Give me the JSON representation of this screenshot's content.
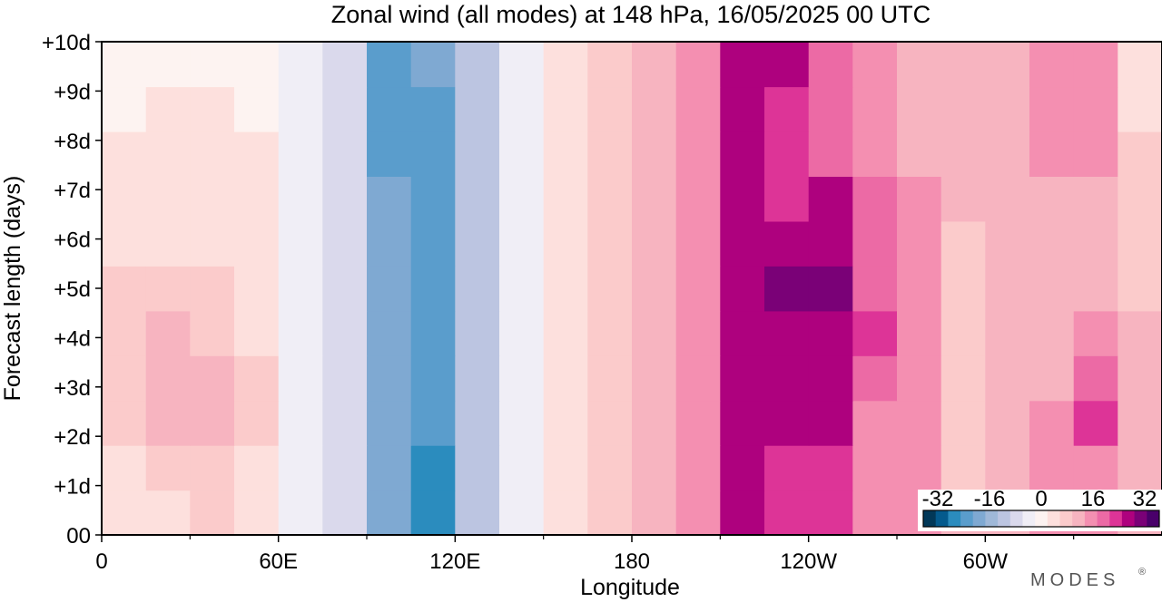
{
  "chart_data": {
    "type": "heatmap",
    "title": "Zonal wind (all modes) at 148 hPa,  16/05/2025  00 UTC",
    "xlabel": "Longitude",
    "ylabel": "Forecast length (days)",
    "x_ticks": [
      {
        "lon": 0,
        "label": "0"
      },
      {
        "lon": 60,
        "label": "60E"
      },
      {
        "lon": 120,
        "label": "120E"
      },
      {
        "lon": 180,
        "label": "180"
      },
      {
        "lon": 240,
        "label": "120W"
      },
      {
        "lon": 300,
        "label": "60W"
      }
    ],
    "x_minor_ticks": [
      30,
      90,
      150,
      210,
      270,
      330
    ],
    "xlim": [
      0,
      360
    ],
    "y_ticks": [
      {
        "day": 0,
        "label": "00"
      },
      {
        "day": 1,
        "label": "+1d"
      },
      {
        "day": 2,
        "label": "+2d"
      },
      {
        "day": 3,
        "label": "+3d"
      },
      {
        "day": 4,
        "label": "+4d"
      },
      {
        "day": 5,
        "label": "+5d"
      },
      {
        "day": 6,
        "label": "+6d"
      },
      {
        "day": 7,
        "label": "+7d"
      },
      {
        "day": 8,
        "label": "+8d"
      },
      {
        "day": 9,
        "label": "+9d"
      },
      {
        "day": 10,
        "label": "+10d"
      }
    ],
    "ylim": [
      0,
      10
    ],
    "colorbar": {
      "range": [
        -32,
        32
      ],
      "tick_labels": [
        "-32",
        "-16",
        "0",
        "16",
        "32"
      ],
      "colors": [
        "#023858",
        "#045a8d",
        "#2b8cbe",
        "#5a9dcc",
        "#7fa9d2",
        "#9fb8d8",
        "#bcc5e1",
        "#dad9ec",
        "#f0eef6",
        "#fdf3f1",
        "#fde0dd",
        "#fbcbcb",
        "#f7b4c0",
        "#f48fb1",
        "#ec6aa5",
        "#dd3497",
        "#ae017e",
        "#7a0177",
        "#49006a"
      ]
    },
    "series": [
      {
        "values": [
          [
            3,
            5,
            6,
            4,
            -2,
            -8,
            -18,
            -22,
            -10,
            -4,
            3,
            7,
            10,
            12,
            23,
            20,
            21,
            15,
            13,
            9,
            9,
            14,
            12,
            11
          ],
          [
            5,
            7,
            8,
            5,
            -2,
            -8,
            -18,
            -22,
            -10,
            -4,
            3,
            7,
            10,
            12,
            22,
            20,
            20,
            14,
            12,
            8,
            10,
            14,
            15,
            10
          ],
          [
            7,
            9,
            9,
            6,
            -2,
            -8,
            -18,
            -21,
            -10,
            -4,
            3,
            7,
            10,
            13,
            24,
            22,
            22,
            15,
            12,
            8,
            11,
            13,
            20,
            11
          ],
          [
            8,
            10,
            9,
            6,
            -2,
            -8,
            -18,
            -20,
            -10,
            -4,
            3,
            7,
            10,
            13,
            24,
            25,
            25,
            18,
            12,
            8,
            10,
            11,
            16,
            10
          ],
          [
            8,
            9,
            8,
            5,
            -2,
            -8,
            -18,
            -19,
            -10,
            -4,
            3,
            7,
            10,
            12,
            22,
            25,
            25,
            19,
            12,
            8,
            9,
            10,
            13,
            9
          ],
          [
            6,
            7,
            6,
            4,
            -2,
            -8,
            -18,
            -20,
            -10,
            -4,
            3,
            7,
            10,
            12,
            22,
            26,
            26,
            18,
            12,
            8,
            9,
            9,
            11,
            8
          ],
          [
            4,
            5,
            5,
            3,
            -2,
            -8,
            -18,
            -20,
            -10,
            -4,
            3,
            7,
            10,
            13,
            24,
            24,
            24,
            17,
            12,
            8,
            9,
            9,
            10,
            7
          ],
          [
            3,
            4,
            4,
            3,
            -2,
            -8,
            -18,
            -20,
            -10,
            -4,
            3,
            7,
            10,
            13,
            24,
            20,
            22,
            16,
            12,
            9,
            10,
            11,
            10,
            6
          ],
          [
            2,
            3,
            3,
            2,
            -2,
            -8,
            -20,
            -20,
            -10,
            -4,
            3,
            7,
            10,
            14,
            24,
            20,
            17,
            14,
            11,
            10,
            10,
            12,
            12,
            6
          ],
          [
            1,
            2,
            2,
            1,
            -2,
            -8,
            -20,
            -19,
            -10,
            -4,
            3,
            7,
            10,
            14,
            24,
            21,
            16,
            13,
            11,
            10,
            10,
            13,
            13,
            5
          ],
          [
            0,
            1,
            1,
            0,
            -2,
            -8,
            -19,
            -18,
            -10,
            -4,
            3,
            7,
            10,
            14,
            23,
            22,
            16,
            13,
            11,
            10,
            10,
            14,
            14,
            4
          ]
        ]
      }
    ]
  },
  "branding": {
    "label": "MODES",
    "mark": "®"
  }
}
